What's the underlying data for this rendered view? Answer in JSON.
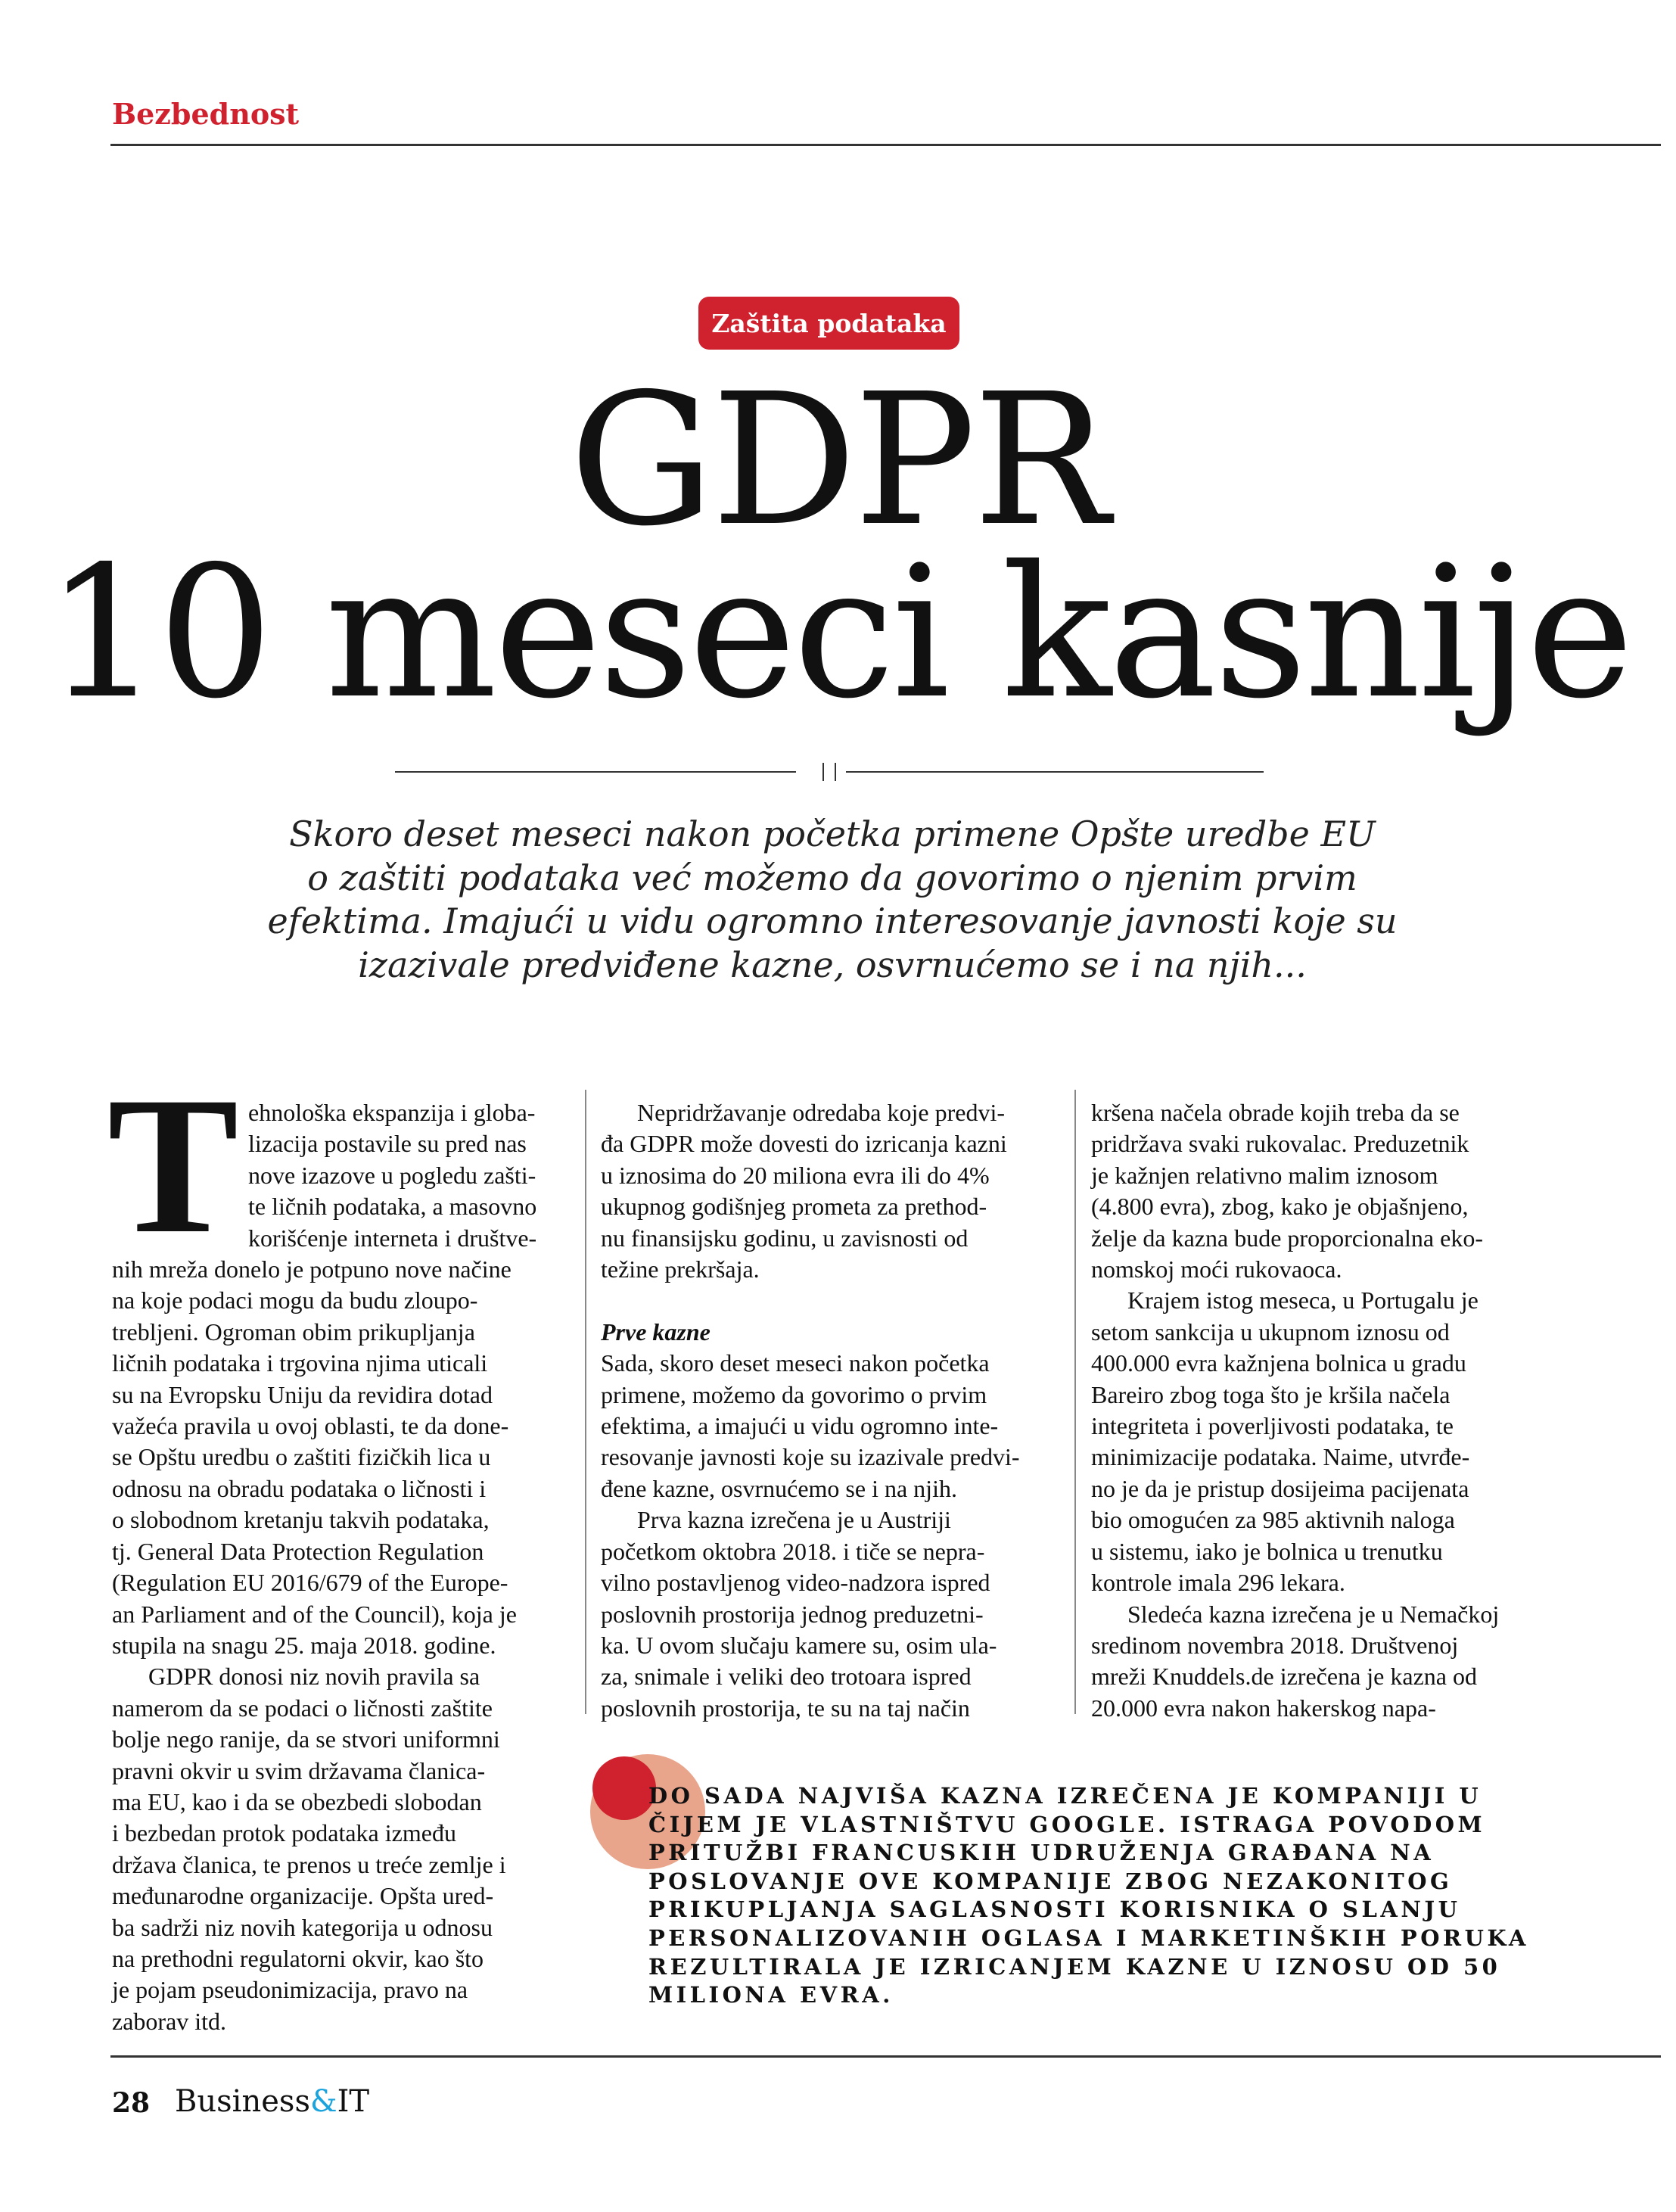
{
  "header": {
    "section": "Bezbednost"
  },
  "badge": "Zaštita podataka",
  "title": {
    "line1": "GDPR",
    "line2": "10 meseci kasnije"
  },
  "deck": [
    "Skoro deset meseci nakon početka primene Opšte uredbe EU",
    "o zaštiti podataka već možemo da govorimo o njenim prvim",
    "efektima. Imajući u vidu ogromno interesovanje javnosti koje su",
    "izazivale predviđene kazne, osvrnućemo se i na njih..."
  ],
  "body": {
    "dropcap": "T",
    "col1": [
      "ehnološka ekspanzija i globa-",
      "lizacija postavile su pred nas",
      "nove izazove u pogledu zašti-",
      "te ličnih podataka, a masovno",
      "korišćenje interneta i društve-",
      "nih mreža donelo je potpuno nove načine",
      "na koje podaci mogu da budu zloupo-",
      "trebljeni. Ogroman obim prikupljanja",
      "ličnih podataka i trgovina njima uticali",
      "su na Evropsku Uniju da revidira dotad",
      "važeća pravila u ovoj oblasti, te da done-",
      "se Opštu uredbu o zaštiti fizičkih lica u",
      "odnosu na obradu podataka o ličnosti i",
      "o slobodnom kretanju takvih podataka,",
      "tj. General Data Protection Regulation",
      "(Regulation EU 2016/679 of the Europe-",
      "an Parliament and of the Council), koja je",
      "stupila na snagu 25. maja 2018. godine.",
      "GDPR donosi niz novih pravila sa",
      "namerom da se podaci o ličnosti zaštite",
      "bolje nego ranije, da se stvori uniformni",
      "pravni okvir u svim državama članica-",
      "ma EU, kao i da se obezbedi slobodan",
      "i bezbedan protok podataka između",
      "država članica, te prenos u treće zemlje i",
      "međunarodne organizacije. Opšta ured-",
      "ba sadrži niz novih kategorija u odnosu",
      "na prethodni regulatorni okvir, kao što",
      "je pojam pseudonimizacija, pravo na",
      "zaborav itd."
    ],
    "col2a": [
      "Nepridržavanje odredaba koje predvi-",
      "đa GDPR može dovesti do izricanja kazni",
      "u iznosima do 20 miliona evra ili do 4%",
      "ukupnog godišnjeg prometa za prethod-",
      "nu finansijsku godinu, u zavisnosti od",
      "težine prekršaja."
    ],
    "subhead": "Prve kazne",
    "col2b": [
      "Sada, skoro deset meseci nakon početka",
      "primene, možemo da govorimo o prvim",
      "efektima, a imajući u vidu ogromno inte-",
      "resovanje javnosti koje su izazivale predvi-",
      "đene kazne, osvrnućemo se i na njih.",
      "Prva kazna izrečena je u Austriji",
      "početkom oktobra 2018. i tiče se nepra-",
      "vilno postavljenog video-nadzora ispred",
      "poslovnih prostorija jednog preduzetni-",
      "ka. U ovom slučaju kamere su, osim ula-",
      "za, snimale i veliki deo trotoara ispred",
      "poslovnih prostorija, te su na taj način"
    ],
    "col3": [
      "kršena načela obrade kojih treba da se",
      "pridržava svaki rukovalac. Preduzetnik",
      "je kažnjen relativno malim iznosom",
      "(4.800 evra), zbog, kako je objašnjeno,",
      "želje da kazna bude proporcionalna eko-",
      "nomskoj moći rukovaoca.",
      "Krajem istog meseca, u Portugalu je",
      "setom sankcija u ukupnom iznosu od",
      "400.000 evra kažnjena bolnica u gradu",
      "Bareiro zbog toga što je kršila načela",
      "integriteta i poverljivosti podataka, te",
      "minimizacije podataka. Naime, utvrđe-",
      "no je da je pristup dosijeima pacijenata",
      "bio omogućen za 985 aktivnih naloga",
      "u sistemu, iako je bolnica u trenutku",
      "kontrole imala 296 lekara.",
      "Sledeća kazna izrečena je u Nemačkoj",
      "sredinom novembra 2018. Društvenoj",
      "mreži Knuddels.de izrečena je kazna od",
      "20.000 evra nakon hakerskog napa-"
    ]
  },
  "pullquote": [
    "DO SADA NAJVIŠA KAZNA IZREČENA JE KOMPANIJI U",
    "ČIJEM JE VLASTNIŠTVU GOOGLE. ISTRAGA POVODOM",
    "PRITUŽBI FRANCUSKIH UDRUŽENJA GRAĐANA NA",
    "POSLOVANJE OVE KOMPANIJE ZBOG NEZAKONITOG",
    "PRIKUPLJANJA SAGLASNOSTI KORISNIKA O SLANJU",
    "PERSONALIZOVANIH OGLASA I MARKETINŠKIH PORUKA",
    "REZULTIRALA JE IZRICANJEM KAZNE U IZNOSU OD 50",
    "MILIONA EVRA."
  ],
  "footer": {
    "page": "28",
    "brand_a": "Business",
    "brand_amp": "&",
    "brand_b": "IT"
  },
  "colors": {
    "accent": "#d0222e",
    "circle_light": "#e9a58c",
    "brand_amp": "#1aa3dd"
  }
}
